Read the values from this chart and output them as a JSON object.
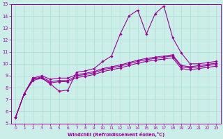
{
  "xlabel": "Windchill (Refroidissement éolien,°C)",
  "xlim": [
    -0.5,
    23.5
  ],
  "ylim": [
    5,
    15
  ],
  "xticks": [
    0,
    1,
    2,
    3,
    4,
    5,
    6,
    7,
    8,
    9,
    10,
    11,
    12,
    13,
    14,
    15,
    16,
    17,
    18,
    19,
    20,
    21,
    22,
    23
  ],
  "yticks": [
    5,
    6,
    7,
    8,
    9,
    10,
    11,
    12,
    13,
    14,
    15
  ],
  "bg_color": "#cceee8",
  "line_color": "#990099",
  "grid_color": "#aaddcc",
  "lines": [
    {
      "x": [
        0,
        1,
        2,
        3,
        4,
        5,
        6,
        7,
        8,
        9,
        10,
        11,
        12,
        13,
        14,
        15,
        16,
        17,
        18,
        19,
        20,
        21,
        22,
        23
      ],
      "y": [
        5.5,
        7.5,
        8.8,
        8.8,
        8.3,
        7.7,
        7.8,
        9.3,
        9.4,
        9.6,
        10.2,
        10.65,
        12.5,
        14.0,
        14.5,
        12.5,
        14.2,
        14.85,
        12.2,
        10.9,
        10.0,
        10.0,
        10.1,
        10.2
      ]
    },
    {
      "x": [
        0,
        1,
        2,
        3,
        4,
        5,
        6,
        7,
        8,
        9,
        10,
        11,
        12,
        13,
        14,
        15,
        16,
        17,
        18,
        19,
        20,
        21,
        22,
        23
      ],
      "y": [
        5.5,
        7.5,
        8.8,
        9.0,
        8.7,
        8.8,
        8.8,
        9.1,
        9.2,
        9.35,
        9.6,
        9.75,
        9.9,
        10.1,
        10.3,
        10.45,
        10.55,
        10.65,
        10.75,
        9.85,
        9.75,
        9.85,
        9.95,
        10.05
      ]
    },
    {
      "x": [
        0,
        1,
        2,
        3,
        4,
        5,
        6,
        7,
        8,
        9,
        10,
        11,
        12,
        13,
        14,
        15,
        16,
        17,
        18,
        19,
        20,
        21,
        22,
        23
      ],
      "y": [
        5.5,
        7.5,
        8.7,
        8.9,
        8.5,
        8.6,
        8.6,
        9.0,
        9.1,
        9.25,
        9.5,
        9.65,
        9.8,
        10.0,
        10.2,
        10.35,
        10.45,
        10.55,
        10.65,
        9.75,
        9.65,
        9.75,
        9.85,
        9.95
      ]
    },
    {
      "x": [
        0,
        1,
        2,
        3,
        4,
        5,
        6,
        7,
        8,
        9,
        10,
        11,
        12,
        13,
        14,
        15,
        16,
        17,
        18,
        19,
        20,
        21,
        22,
        23
      ],
      "y": [
        5.5,
        7.5,
        8.6,
        8.8,
        8.4,
        8.5,
        8.5,
        8.85,
        8.95,
        9.1,
        9.35,
        9.5,
        9.65,
        9.85,
        10.05,
        10.2,
        10.3,
        10.4,
        10.5,
        9.6,
        9.5,
        9.6,
        9.7,
        9.8
      ]
    }
  ]
}
